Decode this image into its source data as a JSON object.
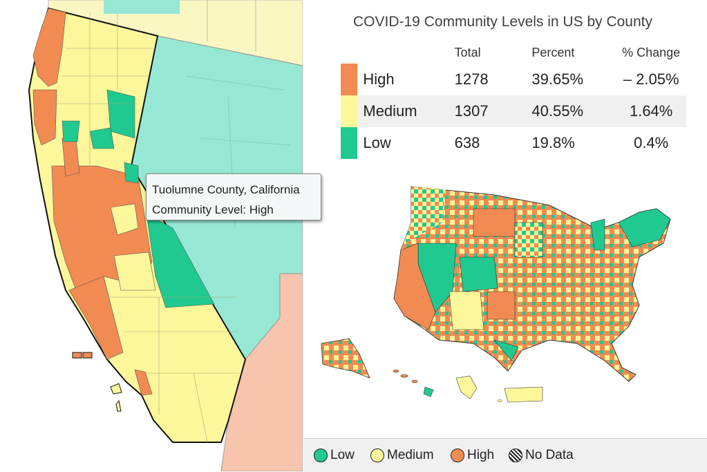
{
  "title": "COVID-19 Community Levels in US by County",
  "table": {
    "headers": [
      "Total",
      "Percent",
      "% Change"
    ],
    "rows": [
      {
        "level": "High",
        "total": "1278",
        "percent": "39.65%",
        "change": "– 2.05%",
        "color": "#f28b52"
      },
      {
        "level": "Medium",
        "total": "1307",
        "percent": "40.55%",
        "change": "1.64%",
        "color": "#fbf79a"
      },
      {
        "level": "Low",
        "total": "638",
        "percent": "19.8%",
        "change": "0.4%",
        "color": "#1fc98f"
      }
    ]
  },
  "tooltip": {
    "county": "Tuolumne County, California",
    "level": "Community Level: High"
  },
  "legend": {
    "items": [
      {
        "label": "Low",
        "color": "#1fc98f"
      },
      {
        "label": "Medium",
        "color": "#fbf79a"
      },
      {
        "label": "High",
        "color": "#f28b52"
      },
      {
        "label": "No Data",
        "color": "hatched"
      }
    ]
  },
  "colors": {
    "high": "#f28b52",
    "medium": "#fbf79a",
    "low": "#1fc98f",
    "low_light": "#96e8d4",
    "arizona": "#f7c4ae"
  }
}
